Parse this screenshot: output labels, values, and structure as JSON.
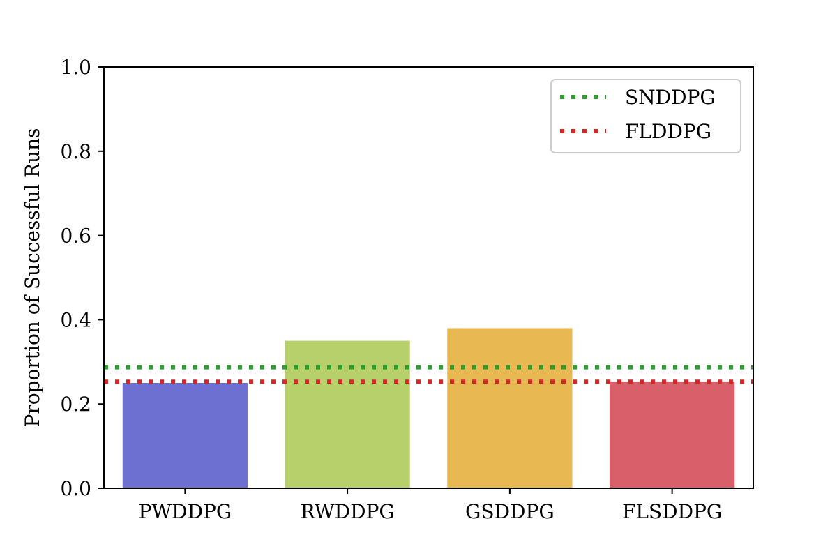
{
  "chart_data": {
    "type": "bar",
    "title": "",
    "xlabel": "",
    "ylabel": "Proportion of Successful Runs",
    "ylim": [
      0,
      1.0
    ],
    "yticks": [
      0.0,
      0.2,
      0.4,
      0.6,
      0.8,
      1.0
    ],
    "ytick_labels": [
      "0.0",
      "0.2",
      "0.4",
      "0.6",
      "0.8",
      "1.0"
    ],
    "categories": [
      "PWDDPG",
      "RWDDPG",
      "GSDDPG",
      "FLSDDPG"
    ],
    "values": [
      0.25,
      0.35,
      0.38,
      0.253
    ],
    "bar_colors": [
      "#6e70d1",
      "#b8d06c",
      "#e8b852",
      "#d9606a"
    ],
    "reference_lines": [
      {
        "name": "SNDDPG",
        "value": 0.287,
        "color": "#2ca02c",
        "style": "dotted"
      },
      {
        "name": "FLDDPG",
        "value": 0.253,
        "color": "#d62728",
        "style": "dotted"
      }
    ],
    "legend": {
      "position": "top-right",
      "entries": [
        "SNDDPG",
        "FLDDPG"
      ]
    }
  }
}
